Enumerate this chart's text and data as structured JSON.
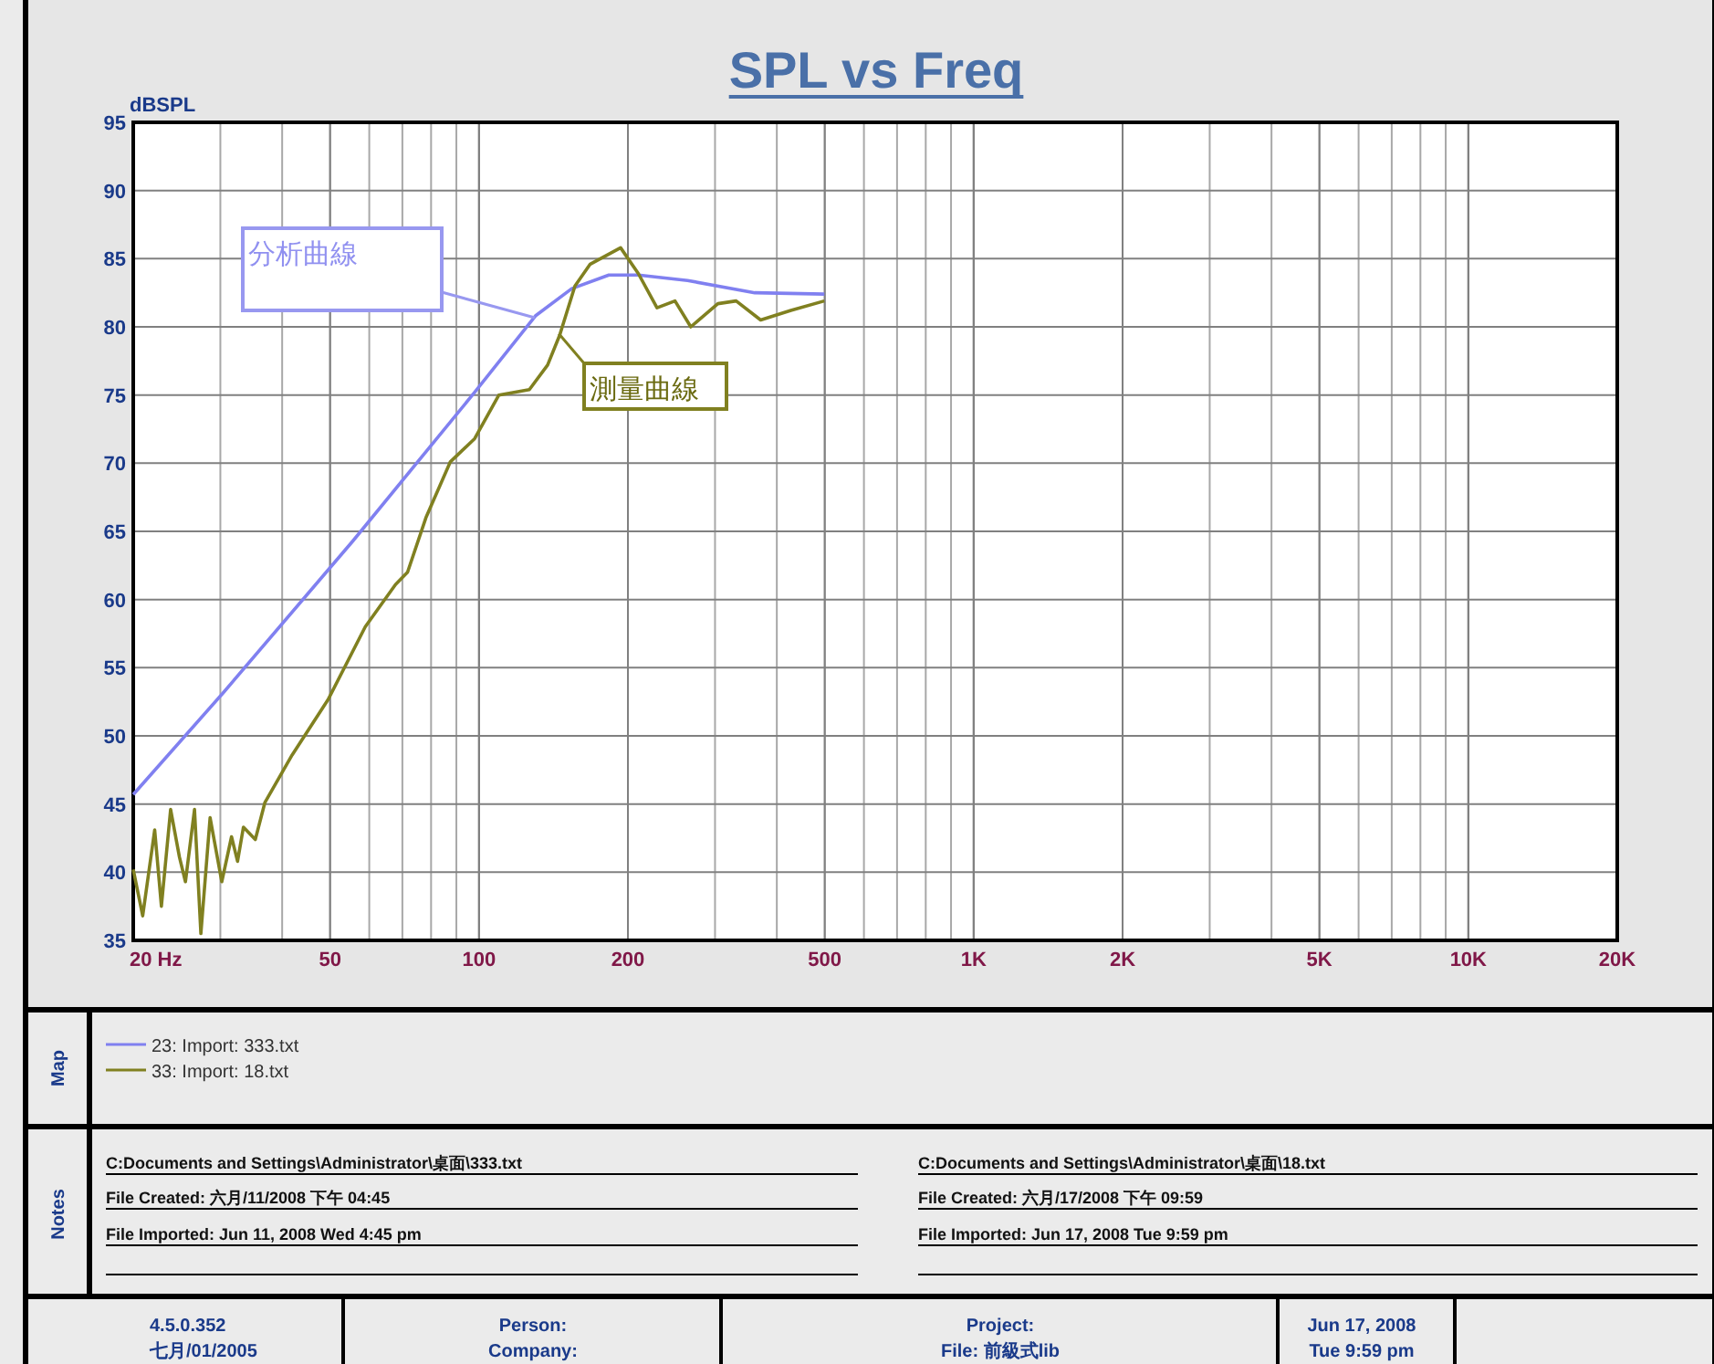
{
  "chart_data": {
    "type": "line",
    "title": "SPL vs Freq",
    "ylabel": "dBSPL",
    "legend_title": "Map",
    "log": "x",
    "grid": true,
    "legend": "bottom",
    "xlim": [
      20,
      20000
    ],
    "ylim": [
      35,
      95
    ],
    "xticks": [
      {
        "value": 20,
        "label": "20 Hz"
      },
      50,
      100,
      200,
      500,
      {
        "value": 1000,
        "label": "1K"
      },
      {
        "value": 2000,
        "label": "2K"
      },
      {
        "value": 5000,
        "label": "5K"
      },
      {
        "value": 10000,
        "label": "10K"
      },
      {
        "value": 20000,
        "label": "20K"
      }
    ],
    "yticks": [
      35,
      40,
      45,
      50,
      55,
      60,
      65,
      70,
      75,
      80,
      85,
      90,
      95
    ],
    "series": [
      {
        "name": "23: Import: 333.txt",
        "color": "#8080f0",
        "x": [
          20,
          30.3,
          55.6,
          98,
          130,
          154,
          183,
          210,
          264,
          361,
          499
        ],
        "values": [
          45.7,
          53.1,
          64.3,
          75.2,
          80.8,
          82.8,
          83.8,
          83.8,
          83.4,
          82.5,
          82.4
        ]
      },
      {
        "name": "33: Import: 18.txt",
        "color": "#808020",
        "x": [
          20,
          20.9,
          22.1,
          22.8,
          23.8,
          24.8,
          25.5,
          26.6,
          27.4,
          28.6,
          30.2,
          31.6,
          32.5,
          33.4,
          35.3,
          36.9,
          41.9,
          49.6,
          58.9,
          67.8,
          71.7,
          78.1,
          87.5,
          98,
          109.7,
          126.4,
          137.6,
          145.6,
          156.3,
          167.8,
          193.3,
          210,
          229,
          249,
          268,
          304,
          331,
          371,
          427,
          499
        ],
        "values": [
          40.2,
          36.8,
          43.1,
          37.5,
          44.6,
          41.1,
          39.3,
          44.6,
          35.5,
          44,
          39.3,
          42.6,
          40.8,
          43.3,
          42.4,
          45.1,
          48.6,
          52.7,
          58,
          61.1,
          62,
          66,
          70.1,
          71.8,
          75,
          75.4,
          77.2,
          79.4,
          83,
          84.6,
          85.8,
          83.9,
          81.4,
          81.9,
          80,
          81.7,
          81.9,
          80.5,
          81.2,
          81.9
        ]
      }
    ],
    "annotations": [
      "分析曲線",
      {
        "text": "測量曲線",
        "x": 145,
        "y": 79.5
      },
      "Notes",
      "C:Documents and Settings\\Administrator\\桌面\\333.txt",
      "File Created: 六月/11/2008 下午 04:45",
      "File Imported: Jun 11, 2008  Wed  4:45 pm",
      "C:Documents and Settings\\Administrator\\桌面\\18.txt",
      "File Created: 六月/17/2008 下午 09:59",
      "File Imported: Jun 17, 2008  Tue  9:59 pm",
      "4.5.0.352",
      "七月/01/2005",
      "Person:",
      "Company:",
      "Project:",
      "File: 前級式lib",
      "Jun 17, 2008",
      "Tue  9:59 pm"
    ]
  }
}
